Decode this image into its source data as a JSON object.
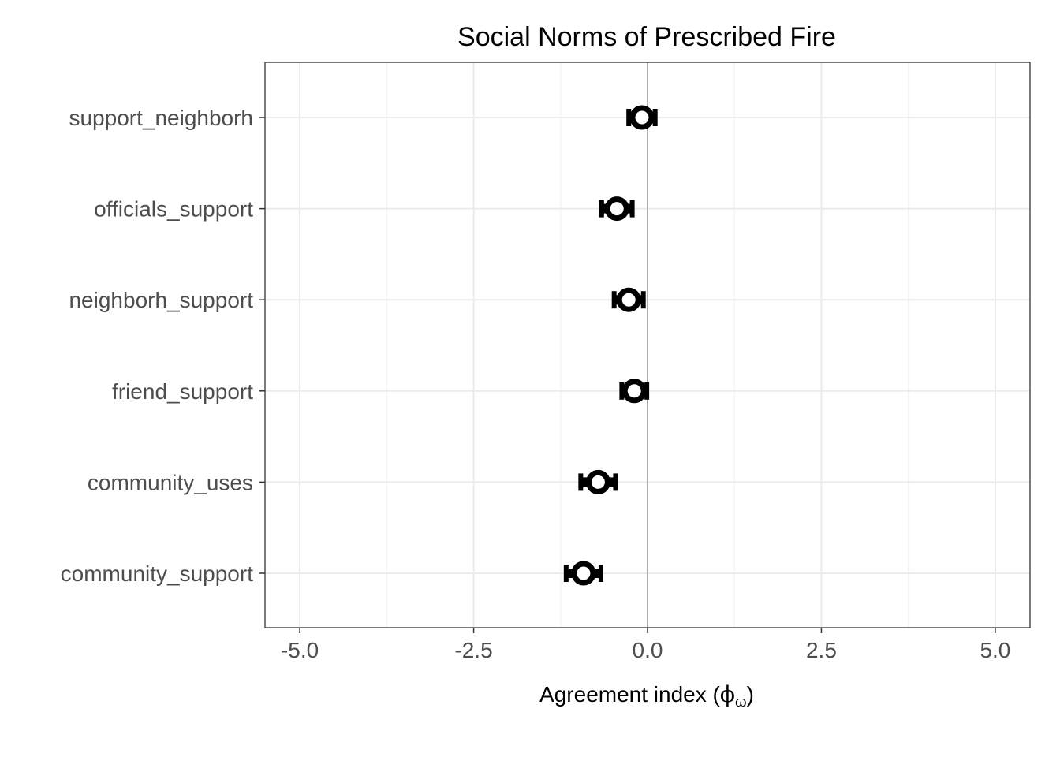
{
  "chart_data": {
    "type": "scatter",
    "title": "Social Norms of Prescribed Fire",
    "xlabel": "Agreement index (ϕω)",
    "xlabel_text": "Agreement index (",
    "xlabel_symbol": "ϕ",
    "xlabel_subscript": "ω",
    "xlabel_close": ")",
    "ylabel": "",
    "xlim": [
      -5.5,
      5.5
    ],
    "xticks": [
      -5.0,
      -2.5,
      0.0,
      2.5,
      5.0
    ],
    "xtick_labels": [
      "-5.0",
      "-2.5",
      "0.0",
      "2.5",
      "5.0"
    ],
    "reference_line": 0,
    "grid": true,
    "categories": [
      "community_support",
      "community_uses",
      "friend_support",
      "neighborh_support",
      "officials_support",
      "support_neighborh"
    ],
    "series": [
      {
        "values": [
          -0.92,
          -0.71,
          -0.19,
          -0.27,
          -0.44,
          -0.08
        ],
        "lower": [
          -1.17,
          -0.96,
          -0.37,
          -0.48,
          -0.66,
          -0.27
        ],
        "upper": [
          -0.67,
          -0.46,
          -0.01,
          -0.06,
          -0.22,
          0.11
        ]
      }
    ]
  },
  "colors": {
    "point": "#000000",
    "point_fill": "#ffffff",
    "grid_major": "#ebebeb",
    "grid_minor": "#f2f2f2",
    "panel_border": "#333333",
    "reference_line": "#999999",
    "tick_text": "#4d4d4d"
  }
}
